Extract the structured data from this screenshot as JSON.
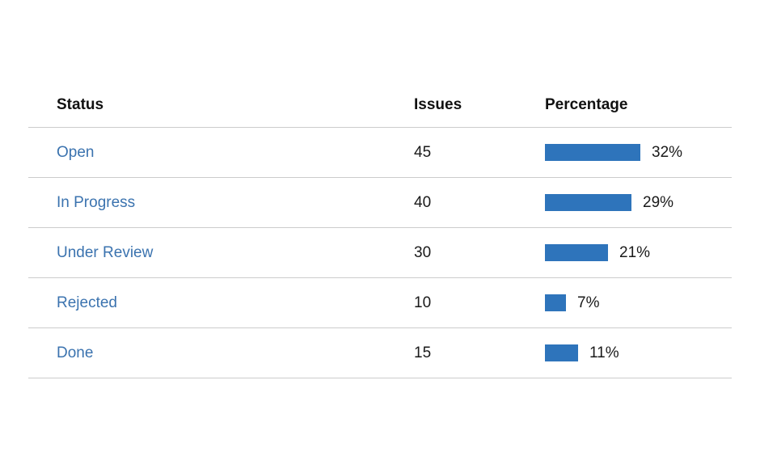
{
  "colors": {
    "bar": "#2e74bb",
    "link": "#3b73af",
    "divider": "#cccccc"
  },
  "table": {
    "headers": {
      "status": "Status",
      "issues": "Issues",
      "percentage": "Percentage"
    },
    "rows": [
      {
        "status": "Open",
        "issues": "45",
        "percentage": 32,
        "percentage_label": "32%"
      },
      {
        "status": "In Progress",
        "issues": "40",
        "percentage": 29,
        "percentage_label": "29%"
      },
      {
        "status": "Under Review",
        "issues": "30",
        "percentage": 21,
        "percentage_label": "21%"
      },
      {
        "status": "Rejected",
        "issues": "10",
        "percentage": 7,
        "percentage_label": "7%"
      },
      {
        "status": "Done",
        "issues": "15",
        "percentage": 11,
        "percentage_label": "11%"
      }
    ]
  },
  "chart_data": {
    "type": "table",
    "title": "",
    "columns": [
      "Status",
      "Issues",
      "Percentage"
    ],
    "categories": [
      "Open",
      "In Progress",
      "Under Review",
      "Rejected",
      "Done"
    ],
    "series": [
      {
        "name": "Issues",
        "values": [
          45,
          40,
          30,
          10,
          15
        ]
      },
      {
        "name": "Percentage",
        "values": [
          32,
          29,
          21,
          7,
          11
        ]
      }
    ],
    "legend_position": "none",
    "grid": false
  }
}
